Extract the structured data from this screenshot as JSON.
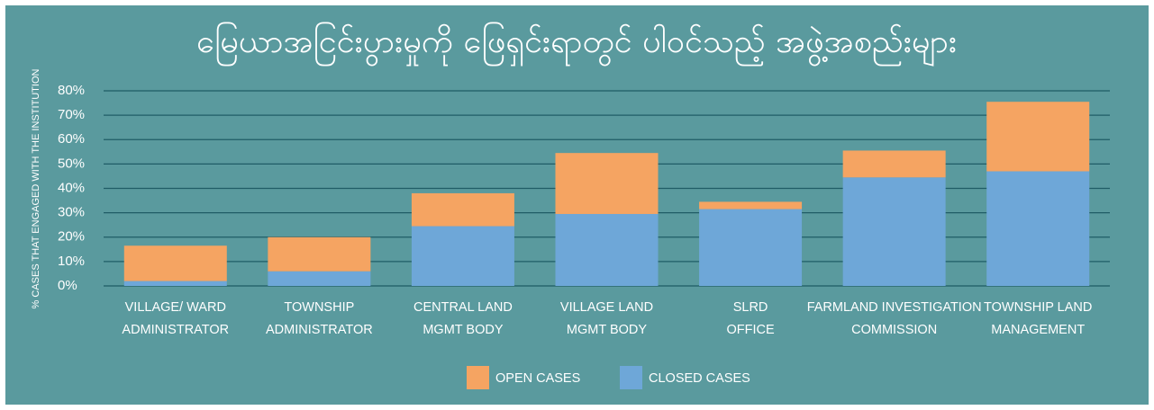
{
  "chart_data": {
    "type": "stacked_bar",
    "title": "မြေယာအငြင်းပွားမှုကို ဖြေရှင်းရာတွင် ပါဝင်သည့် အဖွဲ့အစည်းများ",
    "y_label": "% CASES THAT ENGAGED WITH THE INSTITUTION",
    "categories": [
      [
        "VILLAGE/ WARD",
        "ADMINISTRATOR"
      ],
      [
        "TOWNSHIP",
        "ADMINISTRATOR"
      ],
      [
        "CENTRAL LAND",
        "MGMT BODY"
      ],
      [
        "VILLAGE LAND",
        "MGMT BODY"
      ],
      [
        "SLRD",
        "OFFICE"
      ],
      [
        "FARMLAND INVESTIGATION",
        "COMMISSION"
      ],
      [
        "TOWNSHIP LAND",
        "MANAGEMENT"
      ]
    ],
    "series": [
      {
        "name": "OPEN CASES",
        "color": "#f5a462",
        "values": [
          14.5,
          14,
          13.5,
          25,
          3,
          11,
          28.5
        ]
      },
      {
        "name": "CLOSED CASES",
        "color": "#6ea7d8",
        "values": [
          2,
          6,
          24.5,
          29.5,
          31.5,
          44.5,
          47
        ]
      }
    ],
    "ylim": [
      0,
      80
    ],
    "yticks": [
      {
        "value": 0,
        "label": "0%"
      },
      {
        "value": 10,
        "label": "10%"
      },
      {
        "value": 20,
        "label": "20%"
      },
      {
        "value": 30,
        "label": "30%"
      },
      {
        "value": 40,
        "label": "40%"
      },
      {
        "value": 50,
        "label": "50%"
      },
      {
        "value": 60,
        "label": "60%"
      },
      {
        "value": 70,
        "label": "70%"
      },
      {
        "value": 80,
        "label": "80%"
      }
    ],
    "grid": true,
    "legend": "bottom"
  }
}
